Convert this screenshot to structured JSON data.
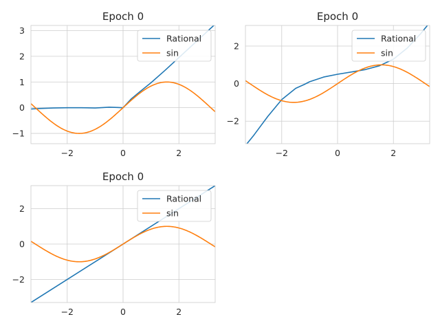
{
  "chart_data": [
    {
      "type": "line",
      "title": "Epoch 0",
      "xlabel": "",
      "ylabel": "",
      "xlim": [
        -3.3,
        3.3
      ],
      "ylim": [
        -1.4,
        3.2
      ],
      "xticks": [
        -2,
        0,
        2
      ],
      "xtick_labels": [
        "−2",
        "0",
        "2"
      ],
      "yticks": [
        -1,
        0,
        1,
        2,
        3
      ],
      "ytick_labels": [
        "−1",
        "0",
        "1",
        "2",
        "3"
      ],
      "grid": true,
      "legend_position": "top-right",
      "legend": [
        "Rational",
        "sin"
      ],
      "series": [
        {
          "name": "Rational",
          "color": "#1f77b4",
          "x": [
            -3.3,
            -3.0,
            -2.5,
            -2.0,
            -1.5,
            -1.0,
            -0.5,
            -0.2,
            0.0,
            0.3,
            0.6,
            1.0,
            1.5,
            2.0,
            2.5,
            3.0,
            3.3
          ],
          "y": [
            -0.05,
            -0.03,
            -0.01,
            0.0,
            0.0,
            -0.01,
            0.02,
            0.01,
            0.0,
            0.35,
            0.62,
            0.97,
            1.45,
            1.95,
            2.45,
            2.95,
            3.25
          ]
        },
        {
          "name": "sin",
          "color": "#ff7f0e",
          "function": "sin",
          "x_range": [
            -3.3,
            3.3
          ]
        }
      ]
    },
    {
      "type": "line",
      "title": "Epoch 0",
      "xlabel": "",
      "ylabel": "",
      "xlim": [
        -3.3,
        3.3
      ],
      "ylim": [
        -3.2,
        3.1
      ],
      "xticks": [
        -2,
        0,
        2
      ],
      "xtick_labels": [
        "−2",
        "0",
        "2"
      ],
      "yticks": [
        -2,
        0,
        2
      ],
      "ytick_labels": [
        "−2",
        "0",
        "2"
      ],
      "grid": true,
      "legend_position": "top-right",
      "legend": [
        "Rational",
        "sin"
      ],
      "series": [
        {
          "name": "Rational",
          "color": "#1f77b4",
          "x": [
            -3.3,
            -3.0,
            -2.5,
            -2.0,
            -1.5,
            -1.2,
            -1.0,
            -0.5,
            0.0,
            0.5,
            1.0,
            1.5,
            2.0,
            2.5,
            3.0,
            3.3
          ],
          "y": [
            -3.3,
            -2.75,
            -1.75,
            -0.85,
            -0.25,
            -0.05,
            0.1,
            0.35,
            0.5,
            0.62,
            0.75,
            0.95,
            1.3,
            1.9,
            2.7,
            3.25
          ]
        },
        {
          "name": "sin",
          "color": "#ff7f0e",
          "function": "sin",
          "x_range": [
            -3.3,
            3.3
          ]
        }
      ]
    },
    {
      "type": "line",
      "title": "Epoch 0",
      "xlabel": "",
      "ylabel": "",
      "xlim": [
        -3.3,
        3.3
      ],
      "ylim": [
        -3.3,
        3.3
      ],
      "xticks": [
        -2,
        0,
        2
      ],
      "xtick_labels": [
        "−2",
        "0",
        "2"
      ],
      "yticks": [
        -2,
        0,
        2
      ],
      "ytick_labels": [
        "−2",
        "0",
        "2"
      ],
      "grid": true,
      "legend_position": "top-right",
      "legend": [
        "Rational",
        "sin"
      ],
      "series": [
        {
          "name": "Rational",
          "color": "#1f77b4",
          "x": [
            -3.3,
            3.3
          ],
          "y": [
            -3.3,
            3.3
          ]
        },
        {
          "name": "sin",
          "color": "#ff7f0e",
          "function": "sin",
          "x_range": [
            -3.3,
            3.3
          ]
        }
      ]
    }
  ]
}
